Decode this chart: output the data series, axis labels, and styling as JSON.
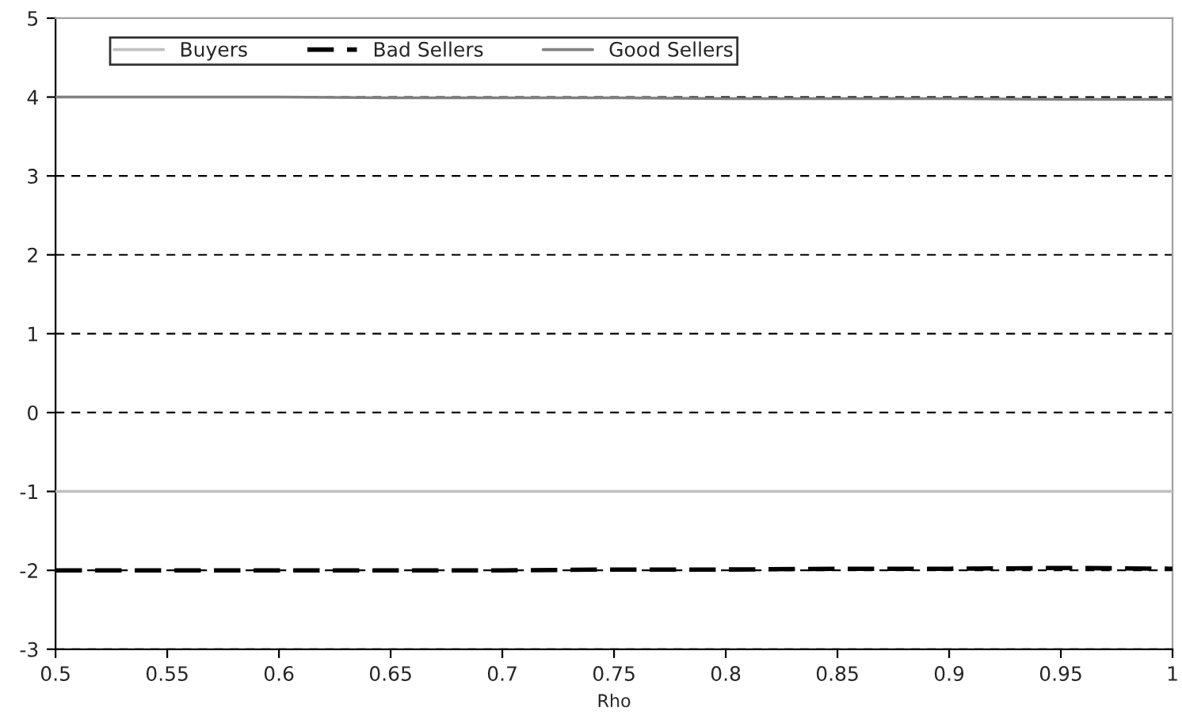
{
  "chart_data": {
    "type": "line",
    "xlabel": "Rho",
    "x": [
      0.5,
      0.55,
      0.6,
      0.65,
      0.7,
      0.75,
      0.8,
      0.85,
      0.9,
      0.95,
      1.0
    ],
    "series": [
      {
        "name": "Buyers",
        "color": "#c0c0c0",
        "line_style": "solid",
        "values": [
          -1,
          -1,
          -1,
          -1,
          -1,
          -1,
          -1,
          -1,
          -1,
          -1,
          -1
        ]
      },
      {
        "name": "Bad Sellers",
        "color": "#000000",
        "line_style": "dashed",
        "values": [
          -2.0,
          -2.0,
          -2.0,
          -2.0,
          -2.0,
          -1.99,
          -1.99,
          -1.98,
          -1.98,
          -1.97,
          -1.98
        ]
      },
      {
        "name": "Good Sellers",
        "color": "#808080",
        "line_style": "solid",
        "values": [
          4.0,
          4.0,
          4.0,
          3.99,
          3.99,
          3.99,
          3.98,
          3.98,
          3.98,
          3.97,
          3.97
        ]
      }
    ],
    "xlim": [
      0.5,
      1.0
    ],
    "xticks": [
      0.5,
      0.55,
      0.6,
      0.65,
      0.7,
      0.75,
      0.8,
      0.85,
      0.9,
      0.95,
      1
    ],
    "ylim": [
      -3,
      5
    ],
    "yticks": [
      -3,
      -2,
      -1,
      0,
      1,
      2,
      3,
      4,
      5
    ],
    "grid": "y",
    "legend": "top left",
    "marker": "none"
  }
}
